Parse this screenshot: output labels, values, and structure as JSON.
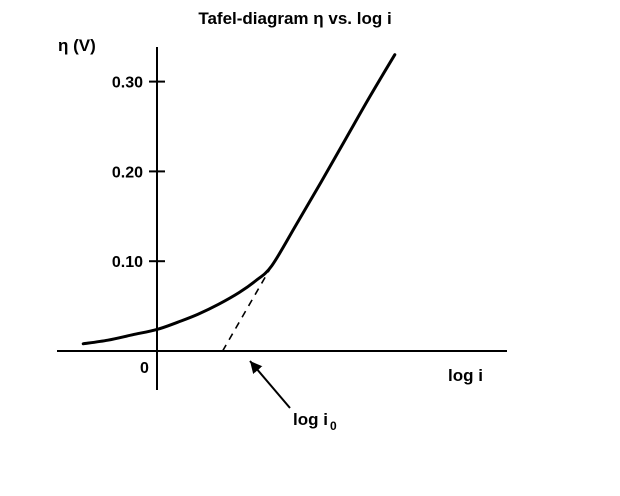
{
  "chart_data": {
    "type": "line",
    "title": "Tafel-diagram η vs. log i",
    "xlabel": "log i",
    "ylabel": "η (V)",
    "xlim": [
      -1.0,
      3.5
    ],
    "ylim": [
      0,
      0.35
    ],
    "grid": false,
    "legend": "none",
    "x_ticks": [
      {
        "value": 0,
        "label": "0"
      }
    ],
    "y_ticks": [
      {
        "value": 0.1,
        "label": "0.10"
      },
      {
        "value": 0.2,
        "label": "0.20"
      },
      {
        "value": 0.3,
        "label": "0.30"
      }
    ],
    "series": [
      {
        "style": "solid",
        "color": "#000000",
        "x": [
          -0.9,
          -0.6,
          -0.3,
          0.0,
          0.25,
          0.5,
          0.75,
          1.0,
          1.2,
          1.4,
          1.7,
          2.0,
          2.3,
          2.6,
          2.9
        ],
        "y": [
          0.008,
          0.012,
          0.018,
          0.024,
          0.032,
          0.041,
          0.052,
          0.065,
          0.078,
          0.095,
          0.141,
          0.188,
          0.236,
          0.284,
          0.33
        ]
      },
      {
        "style": "dashed",
        "color": "#000000",
        "x": [
          0.8,
          1.4
        ],
        "y": [
          0.0,
          0.095
        ]
      }
    ],
    "annotations": [
      {
        "text": "log i",
        "subscript": "0",
        "x": 0.8,
        "y": 0.0
      }
    ]
  }
}
